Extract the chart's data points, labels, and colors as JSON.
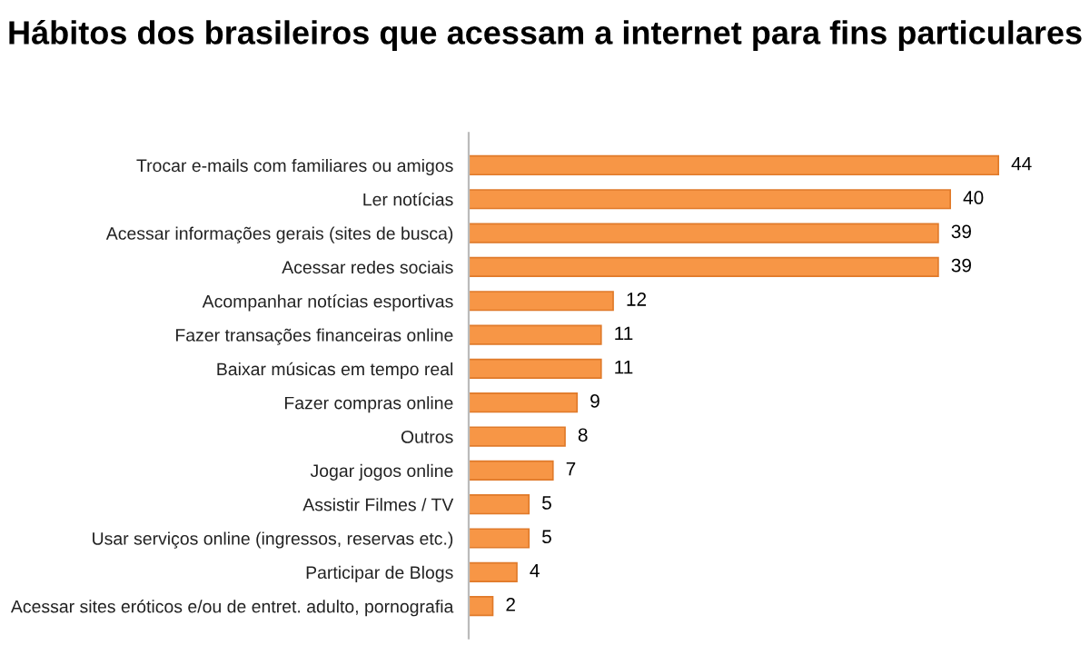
{
  "chart_data": {
    "type": "bar",
    "orientation": "horizontal",
    "title": "Hábitos dos brasileiros que acessam a internet para fins particulares",
    "categories": [
      "Trocar e-mails com familiares ou amigos",
      "Ler notícias",
      "Acessar informações gerais (sites de busca)",
      "Acessar redes sociais",
      "Acompanhar notícias esportivas",
      "Fazer transações financeiras online",
      "Baixar músicas em tempo real",
      "Fazer compras online",
      "Outros",
      "Jogar jogos online",
      "Assistir Filmes / TV",
      "Usar serviços online (ingressos, reservas etc.)",
      "Participar de Blogs",
      "Acessar sites eróticos e/ou de entret. adulto, pornografia"
    ],
    "values": [
      44,
      40,
      39,
      39,
      12,
      11,
      11,
      9,
      8,
      7,
      5,
      5,
      4,
      2
    ],
    "color": "#f79646",
    "data_labels": true,
    "grid": false,
    "legend": false
  }
}
